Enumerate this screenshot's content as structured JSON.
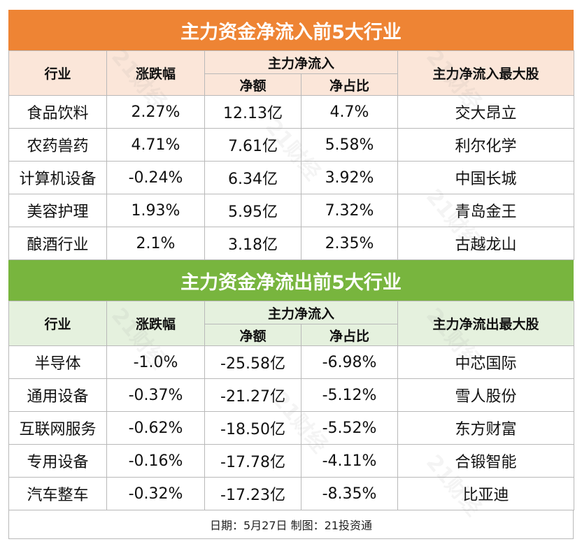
{
  "inflow": {
    "title": "主力资金净流入前5大行业",
    "headers": {
      "industry": "行业",
      "change": "涨跌幅",
      "group": "主力净流入",
      "net": "净额",
      "ratio": "净占比",
      "top_stock": "主力净流入最大股"
    },
    "rows": [
      {
        "industry": "食品饮料",
        "change": "2.27%",
        "net": "12.13亿",
        "ratio": "4.7%",
        "stock": "交大昂立"
      },
      {
        "industry": "农药兽药",
        "change": "4.71%",
        "net": "7.61亿",
        "ratio": "5.58%",
        "stock": "利尔化学"
      },
      {
        "industry": "计算机设备",
        "change": "-0.24%",
        "net": "6.34亿",
        "ratio": "3.92%",
        "stock": "中国长城"
      },
      {
        "industry": "美容护理",
        "change": "1.93%",
        "net": "5.95亿",
        "ratio": "7.32%",
        "stock": "青岛金王"
      },
      {
        "industry": "酿酒行业",
        "change": "2.1%",
        "net": "3.18亿",
        "ratio": "2.35%",
        "stock": "古越龙山"
      }
    ]
  },
  "outflow": {
    "title": "主力资金净流出前5大行业",
    "headers": {
      "industry": "行业",
      "change": "涨跌幅",
      "group": "主力净流入",
      "net": "净额",
      "ratio": "净占比",
      "top_stock": "主力净流出最大股"
    },
    "rows": [
      {
        "industry": "半导体",
        "change": "-1.0%",
        "net": "-25.58亿",
        "ratio": "-6.98%",
        "stock": "中芯国际"
      },
      {
        "industry": "通用设备",
        "change": "-0.37%",
        "net": "-21.27亿",
        "ratio": "-5.12%",
        "stock": "雪人股份"
      },
      {
        "industry": "互联网服务",
        "change": "-0.62%",
        "net": "-18.50亿",
        "ratio": "-5.52%",
        "stock": "东方财富"
      },
      {
        "industry": "专用设备",
        "change": "-0.16%",
        "net": "-17.78亿",
        "ratio": "-4.11%",
        "stock": "合锻智能"
      },
      {
        "industry": "汽车整车",
        "change": "-0.32%",
        "net": "-17.23亿",
        "ratio": "-8.35%",
        "stock": "比亚迪"
      }
    ]
  },
  "footer": "日期：5月27日 制图：21投资通",
  "watermark": "21财经",
  "colors": {
    "inflow_title_bg": "#ee8434",
    "outflow_title_bg": "#78b53e",
    "inflow_header_bg": "#fbe6d9",
    "outflow_header_bg": "#e5f1de"
  }
}
